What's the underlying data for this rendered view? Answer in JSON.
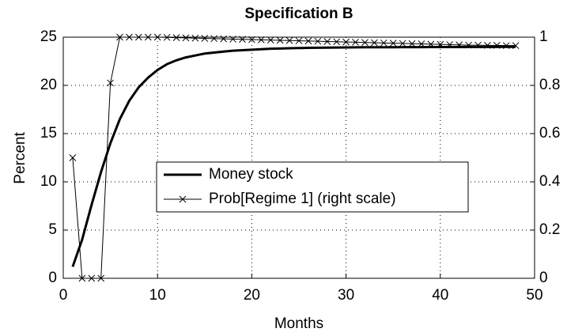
{
  "chart_data": {
    "type": "line",
    "title": "Specification B",
    "xlabel": "Months",
    "ylabel": "Percent",
    "x": [
      1,
      2,
      3,
      4,
      5,
      6,
      7,
      8,
      9,
      10,
      11,
      12,
      13,
      14,
      15,
      16,
      17,
      18,
      19,
      20,
      21,
      22,
      23,
      24,
      25,
      26,
      27,
      28,
      29,
      30,
      31,
      32,
      33,
      34,
      35,
      36,
      37,
      38,
      39,
      40,
      41,
      42,
      43,
      44,
      45,
      46,
      47,
      48
    ],
    "series": [
      {
        "name": "Money stock",
        "color": "#000000",
        "values": [
          1.2,
          4.0,
          7.6,
          11.0,
          14.0,
          16.5,
          18.4,
          19.8,
          20.8,
          21.6,
          22.2,
          22.6,
          22.9,
          23.1,
          23.3,
          23.4,
          23.5,
          23.6,
          23.65,
          23.7,
          23.75,
          23.8,
          23.82,
          23.85,
          23.87,
          23.89,
          23.9,
          23.91,
          23.92,
          23.93,
          23.94,
          23.95,
          23.95,
          23.96,
          23.96,
          23.97,
          23.97,
          23.97,
          23.98,
          23.98,
          23.98,
          23.98,
          23.99,
          23.99,
          23.99,
          23.99,
          24.0,
          24.0
        ]
      },
      {
        "name": "Prob[Regime 1] (right scale)",
        "color": "#000000",
        "axis": "y2",
        "values": [
          0.5,
          0,
          0,
          0,
          0.81,
          1,
          1,
          1,
          1,
          1,
          0.999,
          0.998,
          0.997,
          0.996,
          0.995,
          0.994,
          0.993,
          0.992,
          0.991,
          0.99,
          0.989,
          0.988,
          0.987,
          0.986,
          0.985,
          0.984,
          0.983,
          0.982,
          0.981,
          0.98,
          0.979,
          0.978,
          0.977,
          0.976,
          0.975,
          0.974,
          0.973,
          0.972,
          0.971,
          0.97,
          0.969,
          0.968,
          0.967,
          0.967,
          0.966,
          0.966,
          0.965,
          0.965
        ]
      }
    ],
    "xlim": [
      0,
      50
    ],
    "xticks": [
      0,
      10,
      20,
      30,
      40,
      50
    ],
    "ylim": [
      0,
      25
    ],
    "yticks": [
      0,
      5,
      10,
      15,
      20,
      25
    ],
    "y2lim": [
      0,
      1
    ],
    "y2ticks": [
      0,
      0.2,
      0.4,
      0.6,
      0.8,
      1
    ],
    "grid": true
  }
}
